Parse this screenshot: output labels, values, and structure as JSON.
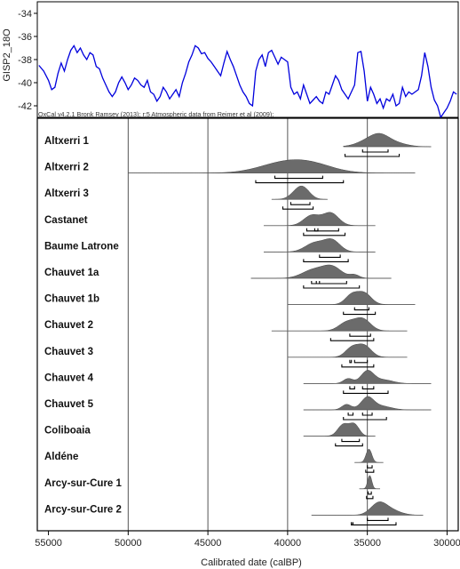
{
  "chart_data": [
    {
      "type": "line",
      "ylabel": "GISP2_18O",
      "ylim": [
        -43,
        -33
      ],
      "yticks": [
        -34,
        -36,
        -38,
        -40,
        -42
      ],
      "xlim": [
        55700,
        29300
      ],
      "credit": "OxCal v4.2.1 Bronk Ramsey (2013); r:5 Atmospheric data from Reimer et al (2009);",
      "line_color": "#0000dd",
      "series": [
        {
          "x": [
            55600,
            55300,
            55000,
            54800,
            54600,
            54400,
            54200,
            54000,
            53800,
            53600,
            53400,
            53200,
            53000,
            52800,
            52600,
            52400,
            52200,
            52000,
            51800,
            51600,
            51400,
            51200,
            51000,
            50800,
            50600,
            50400,
            50200,
            50000,
            49800,
            49600,
            49400,
            49200,
            49000,
            48800,
            48600,
            48400,
            48200,
            48000,
            47800,
            47600,
            47400,
            47200,
            47000,
            46800,
            46600,
            46400,
            46200,
            46000,
            45800,
            45600,
            45400,
            45200,
            45000,
            44800,
            44600,
            44400,
            44200,
            44000,
            43800,
            43600,
            43400,
            43200,
            43000,
            42800,
            42600,
            42400,
            42200,
            42000,
            41800,
            41600,
            41400,
            41200,
            41000,
            40800,
            40600,
            40400,
            40200,
            40000,
            39800,
            39600,
            39400,
            39200,
            39000,
            38800,
            38600,
            38400,
            38200,
            38000,
            37800,
            37600,
            37400,
            37200,
            37000,
            36800,
            36600,
            36400,
            36200,
            36000,
            35800,
            35600,
            35400,
            35200,
            35000,
            34800,
            34600,
            34400,
            34200,
            34000,
            33800,
            33600,
            33400,
            33200,
            33000,
            32800,
            32600,
            32400,
            32200,
            32000,
            31800,
            31600,
            31400,
            31200,
            31000,
            30800,
            30600,
            30400,
            30200,
            30000,
            29800,
            29600,
            29400
          ],
          "y": [
            -38.5,
            -39.0,
            -39.8,
            -40.6,
            -40.4,
            -39.2,
            -38.3,
            -39.0,
            -38.0,
            -37.2,
            -36.8,
            -37.4,
            -37.0,
            -37.6,
            -38.0,
            -37.4,
            -37.6,
            -38.6,
            -38.8,
            -39.6,
            -40.2,
            -40.8,
            -41.2,
            -40.8,
            -40.0,
            -39.5,
            -40.0,
            -40.6,
            -40.2,
            -39.6,
            -39.8,
            -40.2,
            -40.4,
            -39.8,
            -40.8,
            -41.0,
            -41.6,
            -41.2,
            -40.4,
            -40.8,
            -41.4,
            -41.0,
            -40.6,
            -41.2,
            -40.0,
            -39.2,
            -38.2,
            -37.6,
            -36.8,
            -37.0,
            -37.5,
            -37.4,
            -37.9,
            -38.2,
            -38.6,
            -39.0,
            -39.4,
            -38.3,
            -37.3,
            -38.0,
            -38.6,
            -39.4,
            -40.2,
            -40.8,
            -41.2,
            -41.8,
            -42.0,
            -39.0,
            -38.0,
            -37.6,
            -38.6,
            -37.4,
            -37.2,
            -37.8,
            -38.4,
            -37.8,
            -38.0,
            -38.2,
            -40.4,
            -41.0,
            -40.8,
            -41.4,
            -40.2,
            -41.0,
            -41.8,
            -41.5,
            -41.2,
            -41.6,
            -41.8,
            -40.8,
            -41.0,
            -40.2,
            -39.4,
            -39.8,
            -40.6,
            -41.0,
            -41.4,
            -40.8,
            -40.2,
            -37.4,
            -37.3,
            -39.0,
            -41.6,
            -40.4,
            -41.0,
            -41.8,
            -41.4,
            -42.2,
            -41.4,
            -41.6,
            -41.0,
            -42.0,
            -41.8,
            -40.4,
            -41.2,
            -40.8,
            -41.0,
            -40.8,
            -40.6,
            -39.4,
            -37.4,
            -38.6,
            -40.4,
            -41.5,
            -42.0,
            -43.0,
            -42.6,
            -42.2,
            -41.6,
            -40.8,
            -41.0
          ]
        }
      ]
    },
    {
      "type": "density",
      "xlabel": "Calibrated date (calBP)",
      "xlim": [
        55700,
        29300
      ],
      "xticks": [
        55000,
        50000,
        45000,
        40000,
        35000,
        30000
      ],
      "xtick_labels": [
        "55000",
        "50000",
        "45000",
        "40000",
        "35000",
        "30000"
      ],
      "gridlines": [
        50000,
        45000,
        40000,
        35000,
        30000
      ],
      "fill_color": "#6b6b6b",
      "series": [
        {
          "name": "Altxerri 1",
          "range": [
            36500,
            31000
          ],
          "peaks": [
            [
              35000,
              700,
              0.55
            ],
            [
              34200,
              600,
              1.0
            ],
            [
              33200,
              700,
              0.35
            ]
          ],
          "hpd68": [
            [
              35300,
              33700
            ]
          ],
          "hpd95": [
            [
              36400,
              33000
            ]
          ]
        },
        {
          "name": "Altxerri 2",
          "range": [
            50000,
            32000
          ],
          "peaks": [
            [
              40400,
              1500,
              0.9
            ],
            [
              38500,
              1400,
              0.8
            ]
          ],
          "hpd68": [
            [
              40800,
              37800
            ]
          ],
          "hpd95": [
            [
              42000,
              36500
            ]
          ]
        },
        {
          "name": "Altxerri 3",
          "range": [
            41000,
            37500
          ],
          "peaks": [
            [
              39300,
              450,
              1.0
            ],
            [
              38900,
              400,
              0.6
            ]
          ],
          "hpd68": [
            [
              39800,
              38600
            ]
          ],
          "hpd95": [
            [
              40300,
              38400
            ]
          ]
        },
        {
          "name": "Castanet",
          "range": [
            41500,
            34500
          ],
          "peaks": [
            [
              38500,
              500,
              0.8
            ],
            [
              37300,
              500,
              1.0
            ]
          ],
          "hpd68": [
            [
              38800,
              36800
            ],
            [
              38300,
              38100
            ]
          ],
          "hpd95": [
            [
              39000,
              36400
            ]
          ]
        },
        {
          "name": "Baume Latrone",
          "range": [
            41500,
            34500
          ],
          "peaks": [
            [
              38300,
              600,
              0.8
            ],
            [
              37200,
              500,
              1.0
            ]
          ],
          "hpd68": [
            [
              38000,
              36700
            ]
          ],
          "hpd95": [
            [
              39000,
              36200
            ]
          ]
        },
        {
          "name": "Chauvet 1a",
          "range": [
            42300,
            33500
          ],
          "peaks": [
            [
              38400,
              700,
              0.75
            ],
            [
              37200,
              600,
              1.0
            ],
            [
              35800,
              300,
              0.3
            ]
          ],
          "hpd68": [
            [
              38500,
              36300
            ],
            [
              38200,
              38000
            ]
          ],
          "hpd95": [
            [
              39000,
              35500
            ]
          ]
        },
        {
          "name": "Chauvet 1b",
          "range": [
            40000,
            32000
          ],
          "peaks": [
            [
              36000,
              400,
              0.8
            ],
            [
              35200,
              450,
              1.0
            ]
          ],
          "hpd68": [
            [
              35800,
              34900
            ]
          ],
          "hpd95": [
            [
              36500,
              34500
            ]
          ]
        },
        {
          "name": "Chauvet 2",
          "range": [
            41000,
            32500
          ],
          "peaks": [
            [
              36300,
              500,
              0.7
            ],
            [
              35300,
              500,
              1.0
            ]
          ],
          "hpd68": [
            [
              36100,
              34800
            ]
          ],
          "hpd95": [
            [
              37300,
              34600
            ]
          ]
        },
        {
          "name": "Chauvet 3",
          "range": [
            40000,
            32500
          ],
          "peaks": [
            [
              36000,
              400,
              0.75
            ],
            [
              35200,
              450,
              1.0
            ]
          ],
          "hpd68": [
            [
              35800,
              35000
            ],
            [
              36100,
              36000
            ]
          ],
          "hpd95": [
            [
              36600,
              34600
            ]
          ]
        },
        {
          "name": "Chauvet 4",
          "range": [
            39000,
            31000
          ],
          "peaks": [
            [
              36200,
              300,
              0.4
            ],
            [
              35000,
              400,
              1.0
            ],
            [
              34000,
              600,
              0.3
            ]
          ],
          "hpd68": [
            [
              35300,
              34600
            ],
            [
              36100,
              35800
            ]
          ],
          "hpd95": [
            [
              36500,
              33700
            ]
          ]
        },
        {
          "name": "Chauvet 5",
          "range": [
            39000,
            31000
          ],
          "peaks": [
            [
              36300,
              300,
              0.45
            ],
            [
              35000,
              400,
              1.0
            ],
            [
              34100,
              600,
              0.3
            ]
          ],
          "hpd68": [
            [
              35300,
              34700
            ],
            [
              36200,
              35900
            ]
          ],
          "hpd95": [
            [
              36500,
              33800
            ]
          ]
        },
        {
          "name": "Coliboaia",
          "range": [
            39000,
            34500
          ],
          "peaks": [
            [
              36500,
              350,
              1.0
            ],
            [
              35800,
              300,
              0.95
            ]
          ],
          "hpd68": [
            [
              36600,
              35500
            ]
          ],
          "hpd95": [
            [
              37000,
              35300
            ]
          ]
        },
        {
          "name": "Aldéne",
          "range": [
            35800,
            34000
          ],
          "peaks": [
            [
              34900,
              180,
              1.0
            ]
          ],
          "hpd68": [
            [
              35000,
              34700
            ]
          ],
          "hpd95": [
            [
              35100,
              34600
            ]
          ]
        },
        {
          "name": "Arcy-sur-Cure 1",
          "range": [
            35500,
            34200
          ],
          "peaks": [
            [
              34850,
              130,
              1.0
            ]
          ],
          "hpd68": [
            [
              34950,
              34750
            ]
          ],
          "hpd95": [
            [
              35050,
              34650
            ]
          ]
        },
        {
          "name": "Arcy-sur-Cure 2",
          "range": [
            38500,
            31500
          ],
          "peaks": [
            [
              34300,
              500,
              1.0
            ],
            [
              33500,
              600,
              0.4
            ]
          ],
          "hpd68": [
            [
              35000,
              33700
            ]
          ],
          "hpd95": [
            [
              36000,
              33200
            ],
            [
              36000,
              35900
            ]
          ]
        }
      ]
    }
  ]
}
